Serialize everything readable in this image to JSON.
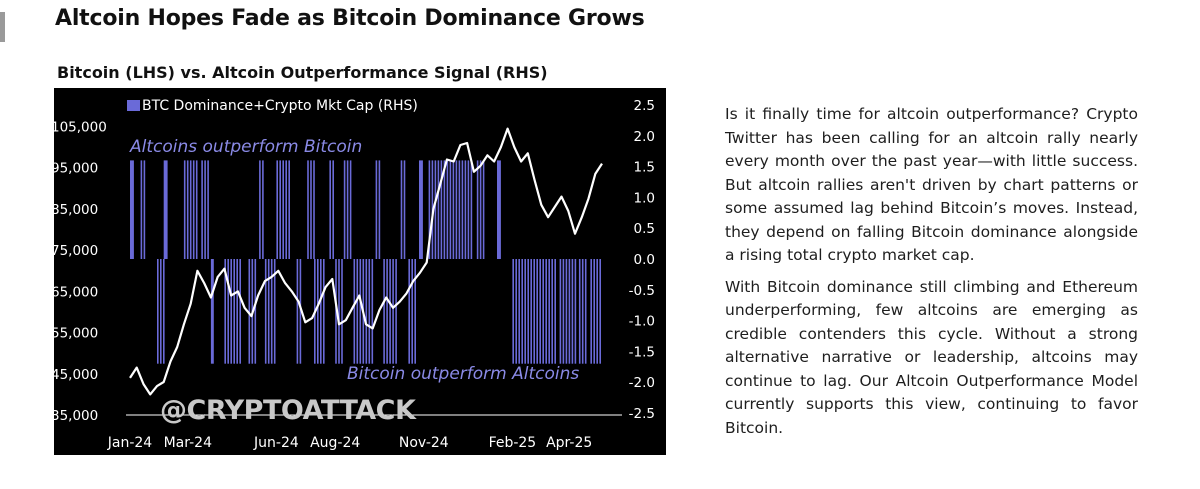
{
  "header": {
    "title": "Altcoin Hopes Fade as Bitcoin Dominance Grows",
    "subtitle": "Bitcoin (LHS) vs. Altcoin Outperformance Signal (RHS)"
  },
  "article": {
    "paragraphs": [
      "Is it finally time for altcoin outperformance? Crypto Twitter has been calling for an altcoin rally nearly every month over the past year—with little success. But altcoin rallies aren't driven by chart patterns or some assumed lag behind Bitcoin’s moves. Instead, they depend on falling Bitcoin dominance alongside a rising total crypto market cap.",
      "With Bitcoin dominance still climbing and Ethereum underperforming, few altcoins are emerging as credible contenders this cycle. Without a strong alternative narrative or leadership, altcoins may continue to lag. Our Altcoin Outperformance Model currently supports this view, continuing to favor Bitcoin."
    ]
  },
  "colors": {
    "chart_bg": "#000000",
    "signal_bar": "#6a6ad8",
    "price_line": "#ffffff",
    "annotation": "#8a8ae6",
    "watermark": "#c8c8c8",
    "axis_text": "#ffffff"
  },
  "chart_data": {
    "type": "line",
    "legend": "BTC Dominance+Crypto Mkt Cap (RHS)",
    "legend_placement": "top-left",
    "annotations": {
      "top": "Altcoins outperform Bitcoin",
      "bottom": "Bitcoin outperform Altcoins"
    },
    "watermark": "@CRYPTOATTACK",
    "grid": false,
    "x_tick_labels": [
      "Jan-24",
      "Mar-24",
      "Jun-24",
      "Aug-24",
      "Nov-24",
      "Feb-25",
      "Apr-25"
    ],
    "y_left": {
      "ticks": [
        "105,000",
        "95,000",
        "85,000",
        "75,000",
        "65,000",
        "55,000",
        "45,000",
        "35,000"
      ],
      "range": [
        35000,
        107500
      ]
    },
    "y_right": {
      "ticks": [
        "2.5",
        "2.0",
        "1.5",
        "1.0",
        "0.5",
        "0.0",
        "-0.5",
        "-1.0",
        "-1.5",
        "-2.0",
        "-2.5"
      ],
      "range": [
        -2.5,
        2.5
      ]
    },
    "series": [
      {
        "name": "Bitcoin",
        "axis": "left",
        "x": [
          "2024-01-01",
          "2024-01-08",
          "2024-01-15",
          "2024-01-22",
          "2024-01-29",
          "2024-02-05",
          "2024-02-12",
          "2024-02-19",
          "2024-02-26",
          "2024-03-04",
          "2024-03-11",
          "2024-03-18",
          "2024-03-25",
          "2024-04-01",
          "2024-04-08",
          "2024-04-15",
          "2024-04-22",
          "2024-04-29",
          "2024-05-06",
          "2024-05-13",
          "2024-05-20",
          "2024-05-27",
          "2024-06-03",
          "2024-06-10",
          "2024-06-17",
          "2024-06-24",
          "2024-07-01",
          "2024-07-08",
          "2024-07-15",
          "2024-07-22",
          "2024-07-29",
          "2024-08-05",
          "2024-08-12",
          "2024-08-19",
          "2024-08-26",
          "2024-09-02",
          "2024-09-09",
          "2024-09-16",
          "2024-09-23",
          "2024-09-30",
          "2024-10-07",
          "2024-10-14",
          "2024-10-21",
          "2024-10-28",
          "2024-11-04",
          "2024-11-11",
          "2024-11-18",
          "2024-11-25",
          "2024-12-02",
          "2024-12-09",
          "2024-12-16",
          "2024-12-23",
          "2024-12-30",
          "2025-01-06",
          "2025-01-13",
          "2025-01-20",
          "2025-01-27",
          "2025-02-03",
          "2025-02-10",
          "2025-02-17",
          "2025-02-24",
          "2025-03-03",
          "2025-03-10",
          "2025-03-17",
          "2025-03-24",
          "2025-03-31",
          "2025-04-07",
          "2025-04-14",
          "2025-04-21",
          "2025-04-28",
          "2025-05-05"
        ],
        "values": [
          44000,
          46500,
          42500,
          40000,
          42000,
          43000,
          48000,
          51500,
          57000,
          62000,
          70000,
          67000,
          63500,
          68500,
          70500,
          64000,
          65000,
          61000,
          59000,
          64000,
          67500,
          68500,
          70000,
          67000,
          65000,
          62500,
          57500,
          58500,
          62000,
          66000,
          68000,
          57000,
          58000,
          61000,
          64000,
          57000,
          56000,
          60500,
          63500,
          61000,
          62500,
          64500,
          67500,
          69500,
          72000,
          85000,
          91000,
          97000,
          96500,
          100500,
          101000,
          94000,
          95500,
          98000,
          96500,
          100000,
          104500,
          100000,
          96500,
          98500,
          92000,
          86000,
          83000,
          85500,
          88000,
          84500,
          79000,
          83000,
          87500,
          93500,
          96000
        ]
      },
      {
        "name": "BTC Dominance+Crypto Mkt Cap (RHS)",
        "axis": "right",
        "type": "bar",
        "periods": [
          {
            "start": "2024-01-01",
            "end": "2024-01-05",
            "value": 1.6
          },
          {
            "start": "2024-01-12",
            "end": "2024-01-18",
            "value": 1.6
          },
          {
            "start": "2024-01-29",
            "end": "2024-02-05",
            "value": -1.7
          },
          {
            "start": "2024-02-05",
            "end": "2024-02-09",
            "value": 1.6
          },
          {
            "start": "2024-02-26",
            "end": "2024-03-12",
            "value": 1.6
          },
          {
            "start": "2024-03-15",
            "end": "2024-03-22",
            "value": 1.6
          },
          {
            "start": "2024-03-25",
            "end": "2024-03-28",
            "value": -1.7
          },
          {
            "start": "2024-04-08",
            "end": "2024-04-25",
            "value": -1.7
          },
          {
            "start": "2024-05-03",
            "end": "2024-05-10",
            "value": -1.7
          },
          {
            "start": "2024-05-14",
            "end": "2024-05-20",
            "value": 1.6
          },
          {
            "start": "2024-05-20",
            "end": "2024-06-01",
            "value": -1.7
          },
          {
            "start": "2024-06-01",
            "end": "2024-06-16",
            "value": 1.6
          },
          {
            "start": "2024-06-22",
            "end": "2024-06-28",
            "value": -1.7
          },
          {
            "start": "2024-07-03",
            "end": "2024-07-10",
            "value": 1.6
          },
          {
            "start": "2024-07-10",
            "end": "2024-07-22",
            "value": -1.7
          },
          {
            "start": "2024-07-26",
            "end": "2024-08-01",
            "value": 1.6
          },
          {
            "start": "2024-08-01",
            "end": "2024-08-10",
            "value": -1.7
          },
          {
            "start": "2024-08-10",
            "end": "2024-08-18",
            "value": 1.6
          },
          {
            "start": "2024-08-20",
            "end": "2024-09-08",
            "value": -1.7
          },
          {
            "start": "2024-09-12",
            "end": "2024-09-17",
            "value": 1.6
          },
          {
            "start": "2024-09-20",
            "end": "2024-10-04",
            "value": -1.7
          },
          {
            "start": "2024-10-08",
            "end": "2024-10-14",
            "value": 1.6
          },
          {
            "start": "2024-10-16",
            "end": "2024-10-24",
            "value": -1.7
          },
          {
            "start": "2024-10-27",
            "end": "2024-10-31",
            "value": 1.6
          },
          {
            "start": "2024-11-06",
            "end": "2024-12-22",
            "value": 1.6
          },
          {
            "start": "2024-12-26",
            "end": "2025-01-02",
            "value": 1.6
          },
          {
            "start": "2025-01-16",
            "end": "2025-01-20",
            "value": 1.6
          },
          {
            "start": "2025-02-01",
            "end": "2025-03-18",
            "value": -1.7
          },
          {
            "start": "2025-03-22",
            "end": "2025-04-09",
            "value": -1.7
          },
          {
            "start": "2025-04-11",
            "end": "2025-04-18",
            "value": -1.7
          },
          {
            "start": "2025-04-23",
            "end": "2025-05-03",
            "value": -1.7
          }
        ]
      }
    ]
  }
}
